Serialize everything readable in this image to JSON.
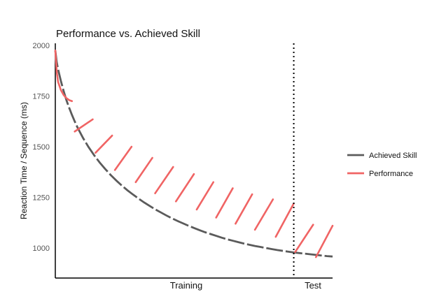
{
  "chart_data": {
    "type": "line",
    "title": "Performance vs. Achieved Skill",
    "xlabel_training": "Training",
    "xlabel_test": "Test",
    "ylabel": "Reaction Time / Sequence (ms)",
    "ylim": [
      900,
      2000
    ],
    "y_ticks": [
      "2000",
      "1750",
      "1500",
      "1250",
      "1000"
    ],
    "y_tick_values": [
      2000,
      1750,
      1500,
      1250,
      1000
    ],
    "xlim": [
      0,
      100
    ],
    "test_start_x": 86,
    "grid": false,
    "legend_position": "right",
    "colors": {
      "achieved_skill": "#5b5b5b",
      "performance": "#f06464",
      "divider": "#000000"
    },
    "series": [
      {
        "name": "Achieved Skill",
        "style": "dashed",
        "x": [
          0,
          0.5,
          1,
          2,
          3,
          4,
          5,
          6,
          7,
          8,
          10,
          12,
          14,
          16,
          18,
          20,
          22,
          24,
          26,
          28,
          30,
          32,
          34,
          36,
          38,
          40,
          42,
          44,
          46,
          48,
          50,
          52,
          54,
          56,
          58,
          60,
          62,
          64,
          66,
          68,
          70,
          72,
          74,
          76,
          78,
          80,
          82,
          84,
          86,
          88,
          90,
          92,
          94,
          96,
          98,
          100
        ],
        "y": [
          1975,
          1918,
          1882,
          1825,
          1775,
          1730,
          1692,
          1657,
          1625,
          1595,
          1543,
          1498,
          1458,
          1422,
          1390,
          1360,
          1333,
          1308,
          1285,
          1264,
          1244,
          1225,
          1208,
          1191,
          1176,
          1161,
          1147,
          1134,
          1122,
          1110,
          1099,
          1088,
          1078,
          1069,
          1060,
          1051,
          1043,
          1036,
          1029,
          1022,
          1016,
          1010,
          1005,
          1000,
          995,
          990,
          986,
          982,
          978,
          975,
          972,
          969,
          966,
          963,
          960,
          958
        ]
      },
      {
        "name": "Performance",
        "segments": [
          {
            "x": [
              0,
              0.5,
              1,
              2,
              3,
              4,
              5,
              6
            ],
            "y": [
              1975,
              1870,
              1820,
              1780,
              1755,
              1740,
              1730,
              1725
            ]
          },
          {
            "x": [
              7,
              13.5
            ],
            "y": [
              1575,
              1635
            ]
          },
          {
            "x": [
              14.5,
              20.5
            ],
            "y": [
              1470,
              1555
            ]
          },
          {
            "x": [
              21.5,
              27.5
            ],
            "y": [
              1385,
              1500
            ]
          },
          {
            "x": [
              29,
              35
            ],
            "y": [
              1325,
              1445
            ]
          },
          {
            "x": [
              36,
              42.5
            ],
            "y": [
              1270,
              1400
            ]
          },
          {
            "x": [
              43.5,
              50
            ],
            "y": [
              1230,
              1365
            ]
          },
          {
            "x": [
              51,
              57
            ],
            "y": [
              1190,
              1325
            ]
          },
          {
            "x": [
              58,
              64
            ],
            "y": [
              1150,
              1295
            ]
          },
          {
            "x": [
              65,
              71
            ],
            "y": [
              1120,
              1265
            ]
          },
          {
            "x": [
              72,
              78.5
            ],
            "y": [
              1090,
              1240
            ]
          },
          {
            "x": [
              79.5,
              86
            ],
            "y": [
              1055,
              1220
            ]
          },
          {
            "x": [
              86.5,
              93
            ],
            "y": [
              980,
              1115
            ]
          },
          {
            "x": [
              94,
              100
            ],
            "y": [
              955,
              1110
            ]
          }
        ]
      }
    ]
  }
}
